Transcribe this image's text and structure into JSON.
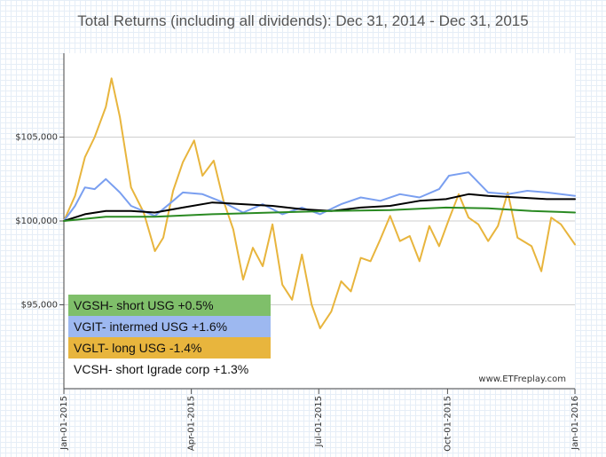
{
  "title": "Total Returns (including all dividends): Dec 31, 2014 - Dec 31, 2015",
  "watermark": "www.ETFreplay.com",
  "legend": [
    {
      "label": "VGSH- short USG +0.5%",
      "color": "#7fbf6a"
    },
    {
      "label": "VGIT- intermed USG +1.6%",
      "color": "#9db8f0"
    },
    {
      "label": "VGLT- long USG -1.4%",
      "color": "#e8b53d"
    },
    {
      "label": "VCSH- short Igrade corp +1.3%",
      "color": "#ffffff"
    }
  ],
  "chart_data": {
    "type": "line",
    "title": "Total Returns (including all dividends): Dec 31, 2014 - Dec 31, 2015",
    "xlabel": "",
    "ylabel": "",
    "x_ticks": [
      "Jan-01-2015",
      "Apr-01-2015",
      "Jul-01-2015",
      "Oct-01-2015",
      "Jan-01-2016"
    ],
    "y_ticks": [
      {
        "value": 95000,
        "label": "$95,000"
      },
      {
        "value": 100000,
        "label": "$100,000"
      },
      {
        "value": 105000,
        "label": "$105,000"
      }
    ],
    "xlim": [
      "2014-12-31",
      "2015-12-31"
    ],
    "ylim": [
      90000,
      110000
    ],
    "grid": "horizontal",
    "series": [
      {
        "name": "VGLT- long USG -1.4%",
        "color": "#e8b53d",
        "x": [
          "2014-12-31",
          "2015-01-08",
          "2015-01-15",
          "2015-01-22",
          "2015-01-30",
          "2015-02-03",
          "2015-02-09",
          "2015-02-17",
          "2015-02-26",
          "2015-03-06",
          "2015-03-12",
          "2015-03-19",
          "2015-03-26",
          "2015-04-03",
          "2015-04-09",
          "2015-04-17",
          "2015-04-24",
          "2015-05-01",
          "2015-05-08",
          "2015-05-15",
          "2015-05-22",
          "2015-05-29",
          "2015-06-05",
          "2015-06-12",
          "2015-06-19",
          "2015-06-26",
          "2015-07-02",
          "2015-07-10",
          "2015-07-17",
          "2015-07-24",
          "2015-07-31",
          "2015-08-07",
          "2015-08-14",
          "2015-08-21",
          "2015-08-28",
          "2015-09-04",
          "2015-09-11",
          "2015-09-18",
          "2015-09-25",
          "2015-10-02",
          "2015-10-09",
          "2015-10-16",
          "2015-10-23",
          "2015-10-30",
          "2015-11-06",
          "2015-11-13",
          "2015-11-20",
          "2015-11-30",
          "2015-12-07",
          "2015-12-14",
          "2015-12-21",
          "2015-12-31"
        ],
        "values": [
          100000,
          101500,
          103800,
          105000,
          106800,
          108500,
          106200,
          102000,
          100500,
          98200,
          99000,
          101800,
          103500,
          104800,
          102700,
          103600,
          101200,
          99500,
          96500,
          98400,
          97300,
          99800,
          96200,
          95300,
          98000,
          95000,
          93600,
          94600,
          96400,
          95800,
          97800,
          97600,
          98900,
          100300,
          98800,
          99100,
          97600,
          99700,
          98500,
          100100,
          101600,
          100200,
          99800,
          98800,
          99700,
          101700,
          99000,
          98500,
          97000,
          100200,
          99800,
          98600
        ]
      },
      {
        "name": "VGIT- intermed USG +1.6%",
        "color": "#7a9ff0",
        "x": [
          "2014-12-31",
          "2015-01-08",
          "2015-01-15",
          "2015-01-22",
          "2015-01-30",
          "2015-02-09",
          "2015-02-17",
          "2015-03-06",
          "2015-03-19",
          "2015-03-26",
          "2015-04-09",
          "2015-04-24",
          "2015-05-08",
          "2015-05-22",
          "2015-06-05",
          "2015-06-19",
          "2015-07-02",
          "2015-07-17",
          "2015-07-31",
          "2015-08-14",
          "2015-08-28",
          "2015-09-11",
          "2015-09-25",
          "2015-10-02",
          "2015-10-16",
          "2015-10-30",
          "2015-11-13",
          "2015-11-27",
          "2015-12-11",
          "2015-12-31"
        ],
        "values": [
          100000,
          100900,
          102000,
          101900,
          102500,
          101700,
          100900,
          100300,
          101200,
          101700,
          101600,
          101100,
          100500,
          101000,
          100400,
          100800,
          100400,
          101000,
          101400,
          101200,
          101600,
          101400,
          101900,
          102700,
          102900,
          101700,
          101600,
          101800,
          101700,
          101500
        ]
      },
      {
        "name": "VCSH- short Igrade corp +1.3%",
        "color": "#000000",
        "x": [
          "2014-12-31",
          "2015-01-15",
          "2015-01-30",
          "2015-02-17",
          "2015-03-06",
          "2015-03-26",
          "2015-04-16",
          "2015-05-08",
          "2015-05-29",
          "2015-06-19",
          "2015-07-10",
          "2015-07-31",
          "2015-08-21",
          "2015-09-11",
          "2015-09-30",
          "2015-10-16",
          "2015-10-30",
          "2015-11-20",
          "2015-12-11",
          "2015-12-31"
        ],
        "values": [
          100000,
          100400,
          100600,
          100600,
          100500,
          100800,
          101100,
          101000,
          100900,
          100700,
          100600,
          100800,
          100900,
          101200,
          101300,
          101600,
          101500,
          101400,
          101300,
          101300
        ]
      },
      {
        "name": "VGSH- short USG +0.5%",
        "color": "#2a8a22",
        "x": [
          "2014-12-31",
          "2015-01-30",
          "2015-03-06",
          "2015-04-16",
          "2015-05-29",
          "2015-07-10",
          "2015-08-21",
          "2015-09-30",
          "2015-10-30",
          "2015-11-30",
          "2015-12-31"
        ],
        "values": [
          100000,
          100250,
          100250,
          100400,
          100500,
          100600,
          100650,
          100800,
          100750,
          100600,
          100500
        ]
      }
    ]
  }
}
